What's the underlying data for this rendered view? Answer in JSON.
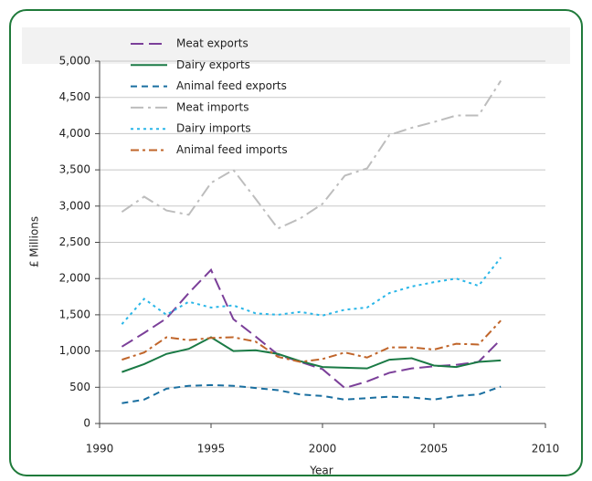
{
  "chart_data": {
    "type": "line",
    "x_label": "Year",
    "y_label": "£ Millions",
    "x": [
      1991,
      1992,
      1993,
      1994,
      1995,
      1996,
      1997,
      1998,
      1999,
      2000,
      2001,
      2002,
      2003,
      2004,
      2005,
      2006,
      2007,
      2008
    ],
    "series": [
      {
        "name": "Meat exports",
        "color": "#7b3f99",
        "values": [
          1060,
          1250,
          1450,
          1800,
          2120,
          1440,
          1200,
          950,
          850,
          750,
          490,
          580,
          700,
          760,
          790,
          810,
          850,
          1160
        ]
      },
      {
        "name": "Dairy exports",
        "color": "#1a7a45",
        "values": [
          710,
          820,
          960,
          1030,
          1190,
          1000,
          1010,
          960,
          860,
          780,
          770,
          760,
          880,
          900,
          800,
          780,
          850,
          870
        ]
      },
      {
        "name": "Animal feed exports",
        "color": "#1a6fa0",
        "values": [
          280,
          330,
          480,
          520,
          530,
          520,
          490,
          460,
          400,
          380,
          330,
          350,
          370,
          360,
          330,
          380,
          400,
          510
        ]
      },
      {
        "name": "Meat imports",
        "color": "#bdbdbd",
        "values": [
          2920,
          3130,
          2940,
          2880,
          3320,
          3500,
          3100,
          2690,
          2830,
          3030,
          3420,
          3520,
          3980,
          4080,
          4160,
          4250,
          4250,
          4730
        ]
      },
      {
        "name": "Dairy imports",
        "color": "#29b6e8",
        "values": [
          1370,
          1720,
          1500,
          1680,
          1600,
          1630,
          1520,
          1500,
          1540,
          1490,
          1570,
          1600,
          1800,
          1890,
          1950,
          2000,
          1900,
          2290
        ]
      },
      {
        "name": "Animal feed imports",
        "color": "#c0652a",
        "values": [
          880,
          980,
          1190,
          1150,
          1180,
          1190,
          1130,
          920,
          850,
          890,
          980,
          910,
          1050,
          1050,
          1020,
          1100,
          1090,
          1420
        ]
      }
    ],
    "xlim": [
      1990,
      2010
    ],
    "xticks": [
      1990,
      1995,
      2000,
      2005,
      2010
    ],
    "ylim": [
      0,
      5000
    ],
    "yticks": [
      0,
      500,
      {
        "value": 1000,
        "label": "1,000"
      },
      {
        "value": 1500,
        "label": "1,500"
      },
      {
        "value": 2000,
        "label": "2,000"
      },
      {
        "value": 2500,
        "label": "2,500"
      },
      {
        "value": 3000,
        "label": "3,000"
      },
      {
        "value": 3500,
        "label": "3,500"
      },
      {
        "value": 4000,
        "label": "4,000"
      },
      {
        "value": 4500,
        "label": "4,500"
      },
      {
        "value": 5000,
        "label": "5,000"
      }
    ],
    "grid": true,
    "legend": "top-left"
  }
}
